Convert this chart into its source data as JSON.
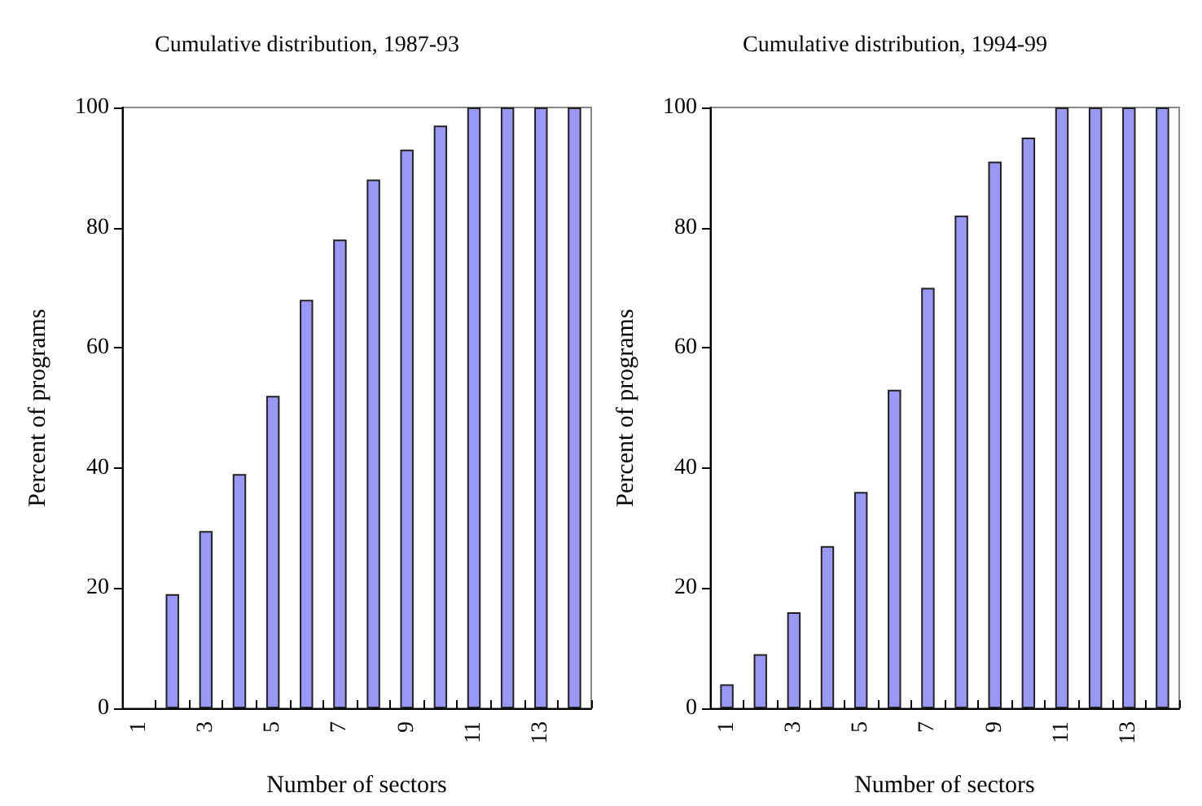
{
  "chart_data": [
    {
      "type": "bar",
      "title": "Cumulative distribution, 1987-93",
      "xlabel": "Number of sectors",
      "ylabel": "Percent of programs",
      "categories": [
        "1",
        null,
        "3",
        null,
        "5",
        null,
        "7",
        null,
        "9",
        null,
        "11",
        null,
        "13",
        null
      ],
      "values": [
        null,
        19,
        29.5,
        39,
        52,
        68,
        78,
        88,
        93,
        97,
        100,
        100,
        100,
        100
      ],
      "color": "#9999f5",
      "ylim": [
        0,
        100
      ],
      "yticks": [
        0,
        20,
        40,
        60,
        80,
        100
      ],
      "grid": false
    },
    {
      "type": "bar",
      "title": "Cumulative distribution, 1994-99",
      "xlabel": "Number of sectors",
      "ylabel": "Percent of programs",
      "categories": [
        "1",
        null,
        "3",
        null,
        "5",
        null,
        "7",
        null,
        "9",
        null,
        "11",
        null,
        "13",
        null
      ],
      "values": [
        4,
        9,
        16,
        27,
        36,
        53,
        70,
        82,
        91,
        95,
        100,
        100,
        100,
        100
      ],
      "color": "#9999f5",
      "ylim": [
        0,
        100
      ],
      "yticks": [
        0,
        20,
        40,
        60,
        80,
        100
      ],
      "grid": false
    }
  ]
}
